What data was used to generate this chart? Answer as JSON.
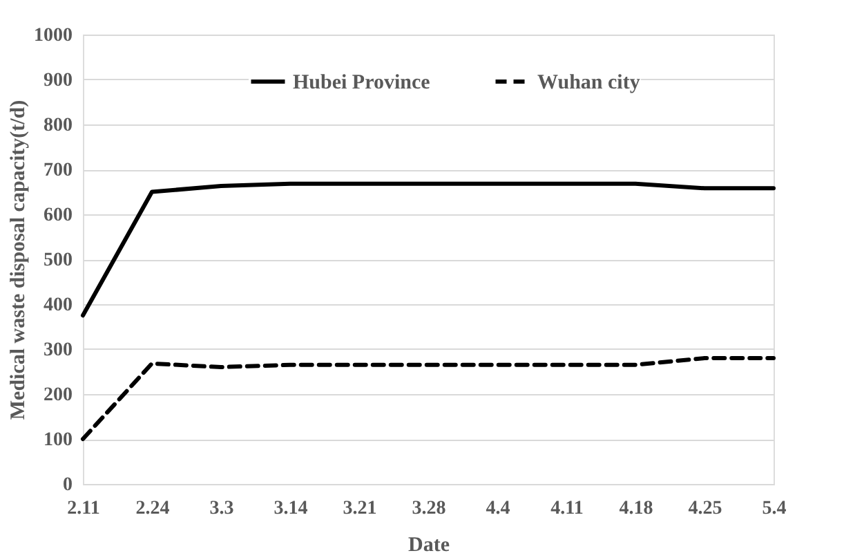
{
  "chart_data": {
    "type": "line",
    "xlabel": "Date",
    "ylabel": "Medical waste disposal capacity(t/d)",
    "categories": [
      "2.11",
      "2.24",
      "3.3",
      "3.14",
      "3.21",
      "3.28",
      "4.4",
      "4.11",
      "4.18",
      "4.25",
      "5.4"
    ],
    "series": [
      {
        "name": "Hubei Province",
        "color": "#000000",
        "line_style": "solid",
        "values": [
          375,
          650,
          663,
          668,
          668,
          668,
          668,
          668,
          668,
          658,
          658
        ]
      },
      {
        "name": "Wuhan city",
        "color": "#000000",
        "line_style": "dashed",
        "values": [
          100,
          268,
          260,
          265,
          265,
          265,
          265,
          265,
          265,
          280,
          280
        ]
      }
    ],
    "ylim": [
      0,
      1000
    ],
    "yticks": [
      0,
      100,
      200,
      300,
      400,
      500,
      600,
      700,
      800,
      900,
      1000
    ],
    "grid": "y",
    "legend": "top",
    "marker": "none"
  }
}
